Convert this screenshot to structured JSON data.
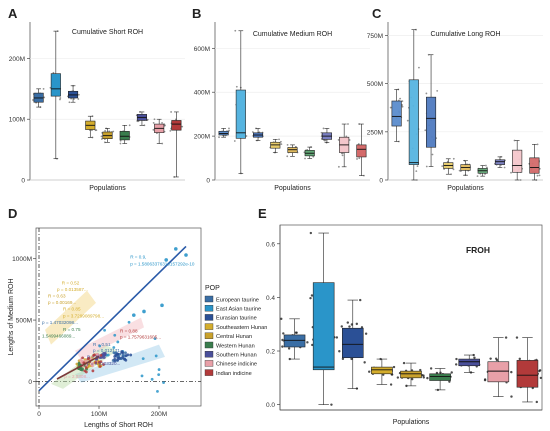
{
  "chart_data": [
    {
      "panel": "A",
      "type": "box",
      "title": "Cumulative Short ROH",
      "xlabel": "Populations",
      "ylabel": "",
      "yticks": [
        "0",
        "100M",
        "200M"
      ],
      "ylim": [
        0,
        260
      ],
      "unit": "M",
      "boxes": [
        {
          "q1": 128,
          "median": 135,
          "q3": 143,
          "lo": 120,
          "hi": 150
        },
        {
          "q1": 138,
          "median": 150,
          "q3": 175,
          "lo": 35,
          "hi": 245
        },
        {
          "q1": 135,
          "median": 140,
          "q3": 146,
          "lo": 128,
          "hi": 155
        },
        {
          "q1": 83,
          "median": 90,
          "q3": 97,
          "lo": 70,
          "hi": 105
        },
        {
          "q1": 68,
          "median": 73,
          "q3": 79,
          "lo": 62,
          "hi": 85
        },
        {
          "q1": 66,
          "median": 72,
          "q3": 80,
          "lo": 60,
          "hi": 90
        },
        {
          "q1": 98,
          "median": 103,
          "q3": 108,
          "lo": 90,
          "hi": 112
        },
        {
          "q1": 78,
          "median": 85,
          "q3": 92,
          "lo": 60,
          "hi": 100
        },
        {
          "q1": 82,
          "median": 92,
          "q3": 98,
          "lo": 5,
          "hi": 112
        }
      ]
    },
    {
      "panel": "B",
      "type": "box",
      "title": "Cumulative Medium ROH",
      "xlabel": "Populations",
      "ylabel": "",
      "yticks": [
        "0",
        "200M",
        "400M",
        "600M"
      ],
      "ylim": [
        0,
        720
      ],
      "unit": "M",
      "boxes": [
        {
          "q1": 205,
          "median": 212,
          "q3": 222,
          "lo": 195,
          "hi": 235
        },
        {
          "q1": 190,
          "median": 215,
          "q3": 410,
          "lo": 30,
          "hi": 680
        },
        {
          "q1": 195,
          "median": 205,
          "q3": 215,
          "lo": 180,
          "hi": 235
        },
        {
          "q1": 145,
          "median": 160,
          "q3": 172,
          "lo": 125,
          "hi": 185
        },
        {
          "q1": 125,
          "median": 138,
          "q3": 148,
          "lo": 108,
          "hi": 160
        },
        {
          "q1": 110,
          "median": 122,
          "q3": 135,
          "lo": 98,
          "hi": 150
        },
        {
          "q1": 185,
          "median": 200,
          "q3": 215,
          "lo": 170,
          "hi": 235
        },
        {
          "q1": 125,
          "median": 160,
          "q3": 195,
          "lo": 60,
          "hi": 255
        },
        {
          "q1": 105,
          "median": 140,
          "q3": 160,
          "lo": 20,
          "hi": 255
        }
      ]
    },
    {
      "panel": "C",
      "type": "box",
      "title": "Cumulative Long ROH",
      "xlabel": "Populations",
      "ylabel": "",
      "yticks": [
        "0",
        "250M",
        "500M",
        "750M"
      ],
      "ylim": [
        0,
        820
      ],
      "unit": "M",
      "boxes": [
        {
          "q1": 280,
          "median": 330,
          "q3": 410,
          "lo": 200,
          "hi": 470
        },
        {
          "q1": 80,
          "median": 90,
          "q3": 520,
          "lo": 0,
          "hi": 780
        },
        {
          "q1": 170,
          "median": 320,
          "q3": 430,
          "lo": 70,
          "hi": 650
        },
        {
          "q1": 60,
          "median": 75,
          "q3": 90,
          "lo": 30,
          "hi": 110
        },
        {
          "q1": 50,
          "median": 65,
          "q3": 80,
          "lo": 25,
          "hi": 100
        },
        {
          "q1": 35,
          "median": 48,
          "q3": 60,
          "lo": 20,
          "hi": 75
        },
        {
          "q1": 80,
          "median": 95,
          "q3": 105,
          "lo": 65,
          "hi": 120
        },
        {
          "q1": 40,
          "median": 75,
          "q3": 155,
          "lo": 0,
          "hi": 205
        },
        {
          "q1": 35,
          "median": 65,
          "q3": 115,
          "lo": 0,
          "hi": 185
        }
      ]
    },
    {
      "panel": "D",
      "type": "scatter",
      "xlabel": "Lengths of Short ROH",
      "ylabel": "Lengths of Medium ROH",
      "xticks": [
        "0",
        "100M",
        "200M"
      ],
      "yticks": [
        "0",
        "500M",
        "1000M"
      ],
      "xlim": [
        -5,
        270
      ],
      "ylim": [
        -200,
        1250
      ],
      "unit": "M",
      "legend_title": "POP",
      "legend": [
        "European taurine",
        "East Asian taurine",
        "Eurasian taurine",
        "Southeastern Hunan",
        "Central Hunan",
        "Western Hunan",
        "Southern Hunan",
        "Chinese indicine",
        "Indian indicine"
      ],
      "regression_lines": [
        {
          "x": [
            0,
            245
          ],
          "y": [
            -75,
            1100
          ]
        },
        {
          "x": [
            30,
            100
          ],
          "y": [
            20,
            205
          ]
        }
      ],
      "annotations": [
        {
          "text": "R = 0.9,",
          "x": 152,
          "y": 1000
        },
        {
          "text": "p = 1.58063376310157292e-10",
          "x": 152,
          "y": 945
        },
        {
          "text": "R = 0.52",
          "x": 38,
          "y": 790
        },
        {
          "text": "p = 0.013587...",
          "x": 30,
          "y": 738
        },
        {
          "text": "R = 0.63",
          "x": 15,
          "y": 682
        },
        {
          "text": "p = 0.00169...",
          "x": 15,
          "y": 630
        },
        {
          "text": "R = 0.85",
          "x": 40,
          "y": 576
        },
        {
          "text": "p = 3.7299089798...",
          "x": 40,
          "y": 522
        },
        {
          "text": "p = 1.47032098...",
          "x": 5,
          "y": 466
        },
        {
          "text": "R = 0.75",
          "x": 40,
          "y": 412
        },
        {
          "text": "1.5499466089...",
          "x": 5,
          "y": 358
        },
        {
          "text": "R = 0.88",
          "x": 135,
          "y": 400
        },
        {
          "text": "p = 1.7579631605...",
          "x": 135,
          "y": 348
        },
        {
          "text": "R = 0.51",
          "x": 90,
          "y": 290
        },
        {
          "text": "p = 0.012171...",
          "x": 90,
          "y": 240
        },
        {
          "text": "R = -0.45",
          "x": 80,
          "y": 185
        },
        {
          "text": "p = 0.0303320...",
          "x": 80,
          "y": 135
        },
        {
          "text": "p = 2.0308...",
          "x": 42,
          "y": 30
        }
      ]
    },
    {
      "panel": "E",
      "type": "box",
      "title": "FROH",
      "xlabel": "Populations",
      "ylabel": "",
      "yticks": [
        "0.0",
        "0.2",
        "0.4",
        "0.6"
      ],
      "ylim": [
        -0.02,
        0.67
      ],
      "boxes": [
        {
          "q1": 0.215,
          "median": 0.24,
          "q3": 0.26,
          "lo": 0.17,
          "hi": 0.32
        },
        {
          "q1": 0.13,
          "median": 0.14,
          "q3": 0.455,
          "lo": 0.0,
          "hi": 0.64
        },
        {
          "q1": 0.175,
          "median": 0.225,
          "q3": 0.285,
          "lo": 0.06,
          "hi": 0.39
        },
        {
          "q1": 0.115,
          "median": 0.13,
          "q3": 0.14,
          "lo": 0.075,
          "hi": 0.17
        },
        {
          "q1": 0.1,
          "median": 0.115,
          "q3": 0.125,
          "lo": 0.07,
          "hi": 0.155
        },
        {
          "q1": 0.09,
          "median": 0.105,
          "q3": 0.115,
          "lo": 0.055,
          "hi": 0.135
        },
        {
          "q1": 0.145,
          "median": 0.16,
          "q3": 0.17,
          "lo": 0.12,
          "hi": 0.185
        },
        {
          "q1": 0.085,
          "median": 0.125,
          "q3": 0.16,
          "lo": 0.03,
          "hi": 0.25
        },
        {
          "q1": 0.065,
          "median": 0.11,
          "q3": 0.165,
          "lo": 0.01,
          "hi": 0.25
        }
      ]
    }
  ],
  "panel_letters": [
    "A",
    "B",
    "C",
    "D",
    "E"
  ],
  "colors": {
    "European taurine": "#3a6ea5",
    "East Asian taurine": "#2a95c9",
    "Eurasian taurine": "#2b5096",
    "Southeastern Hunan": "#d4ad2c",
    "Central Hunan": "#c9a12c",
    "Western Hunan": "#3a7d4d",
    "Southern Hunan": "#4a4f9a",
    "Chinese indicine": "#e8a0a8",
    "Indian indicine": "#b23a3a"
  }
}
